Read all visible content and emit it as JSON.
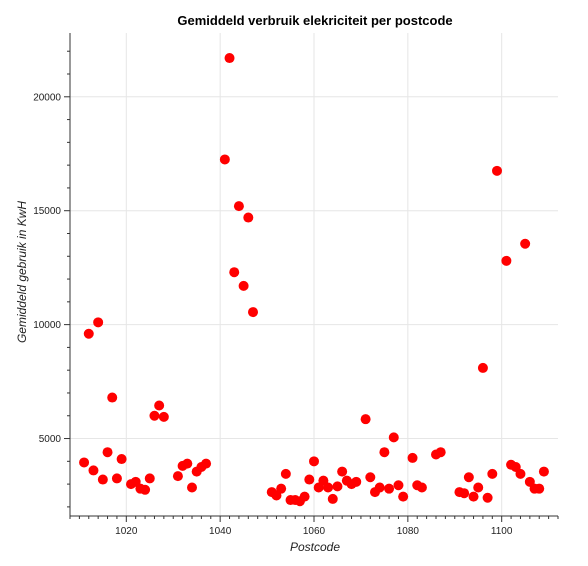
{
  "chart_data": {
    "type": "scatter",
    "title": "Gemiddeld verbruik elekriciteit per postcode",
    "xlabel": "Postcode",
    "ylabel": "Gemiddeld gebruik in KwH",
    "xlim": [
      1008,
      1112
    ],
    "ylim": [
      1600,
      22800
    ],
    "xticks": [
      1020,
      1040,
      1060,
      1080,
      1100
    ],
    "yticks": [
      5000,
      10000,
      15000,
      20000
    ],
    "grid": true,
    "marker_color": "#ff0000",
    "series": [
      {
        "x": [
          1011,
          1012,
          1013,
          1014,
          1015,
          1016,
          1017,
          1018,
          1019,
          1021,
          1022,
          1023,
          1024,
          1025,
          1026,
          1027,
          1028,
          1031,
          1032,
          1033,
          1034,
          1035,
          1036,
          1037,
          1041,
          1042,
          1043,
          1044,
          1045,
          1046,
          1047,
          1051,
          1052,
          1053,
          1054,
          1055,
          1056,
          1057,
          1058,
          1059,
          1060,
          1061,
          1062,
          1063,
          1064,
          1065,
          1066,
          1067,
          1068,
          1069,
          1071,
          1072,
          1073,
          1074,
          1075,
          1076,
          1077,
          1078,
          1079,
          1081,
          1082,
          1083,
          1086,
          1087,
          1091,
          1092,
          1093,
          1094,
          1095,
          1096,
          1097,
          1098,
          1099,
          1101,
          1102,
          1103,
          1104,
          1105,
          1106,
          1107,
          1108,
          1109
        ],
        "y": [
          3950,
          9600,
          3600,
          10100,
          3200,
          4400,
          6800,
          3250,
          4100,
          3000,
          3100,
          2800,
          2750,
          3250,
          6000,
          6450,
          5950,
          3350,
          3800,
          3900,
          2850,
          3550,
          3750,
          3900,
          17250,
          21700,
          12300,
          15200,
          11700,
          14700,
          10550,
          2650,
          2500,
          2800,
          3450,
          2300,
          2300,
          2250,
          2450,
          3200,
          4000,
          2850,
          3150,
          2850,
          2350,
          2900,
          3550,
          3150,
          3000,
          3100,
          5850,
          3300,
          2650,
          2850,
          4400,
          2800,
          5050,
          2950,
          2450,
          4150,
          2950,
          2850,
          4300,
          4400,
          2650,
          2600,
          3300,
          2450,
          2850,
          8100,
          2400,
          3450,
          16750,
          12800,
          3850,
          3750,
          3450,
          13550,
          3100,
          2800,
          2800,
          3550
        ]
      }
    ]
  }
}
